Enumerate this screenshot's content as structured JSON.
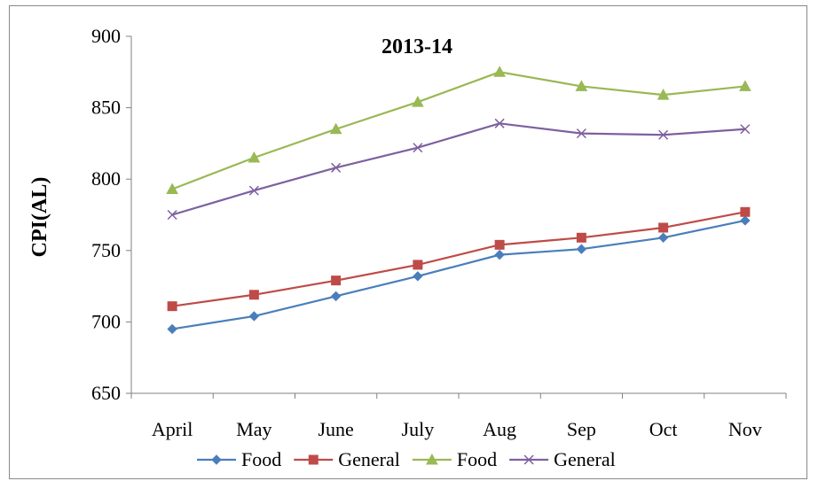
{
  "chart_data": {
    "type": "line",
    "title": "2013-14",
    "xlabel": "",
    "ylabel": "CPI(AL)",
    "ylim": [
      650,
      900
    ],
    "yticks": [
      650,
      700,
      750,
      800,
      850,
      900
    ],
    "grid": false,
    "legend_position": "bottom",
    "categories": [
      "April",
      "May",
      "June",
      "July",
      "Aug",
      "Sep",
      "Oct",
      "Nov"
    ],
    "series": [
      {
        "name": "Food",
        "color": "#4a7ebb",
        "marker": "diamond",
        "values": [
          695,
          704,
          718,
          732,
          747,
          751,
          759,
          771
        ]
      },
      {
        "name": "General",
        "color": "#be4b48",
        "marker": "square",
        "values": [
          711,
          719,
          729,
          740,
          754,
          759,
          766,
          777
        ]
      },
      {
        "name": "Food",
        "color": "#98b954",
        "marker": "triangle",
        "values": [
          793,
          815,
          835,
          854,
          875,
          865,
          859,
          865
        ]
      },
      {
        "name": "General",
        "color": "#7d60a0",
        "marker": "x",
        "values": [
          775,
          792,
          808,
          822,
          839,
          832,
          831,
          835
        ]
      }
    ]
  }
}
